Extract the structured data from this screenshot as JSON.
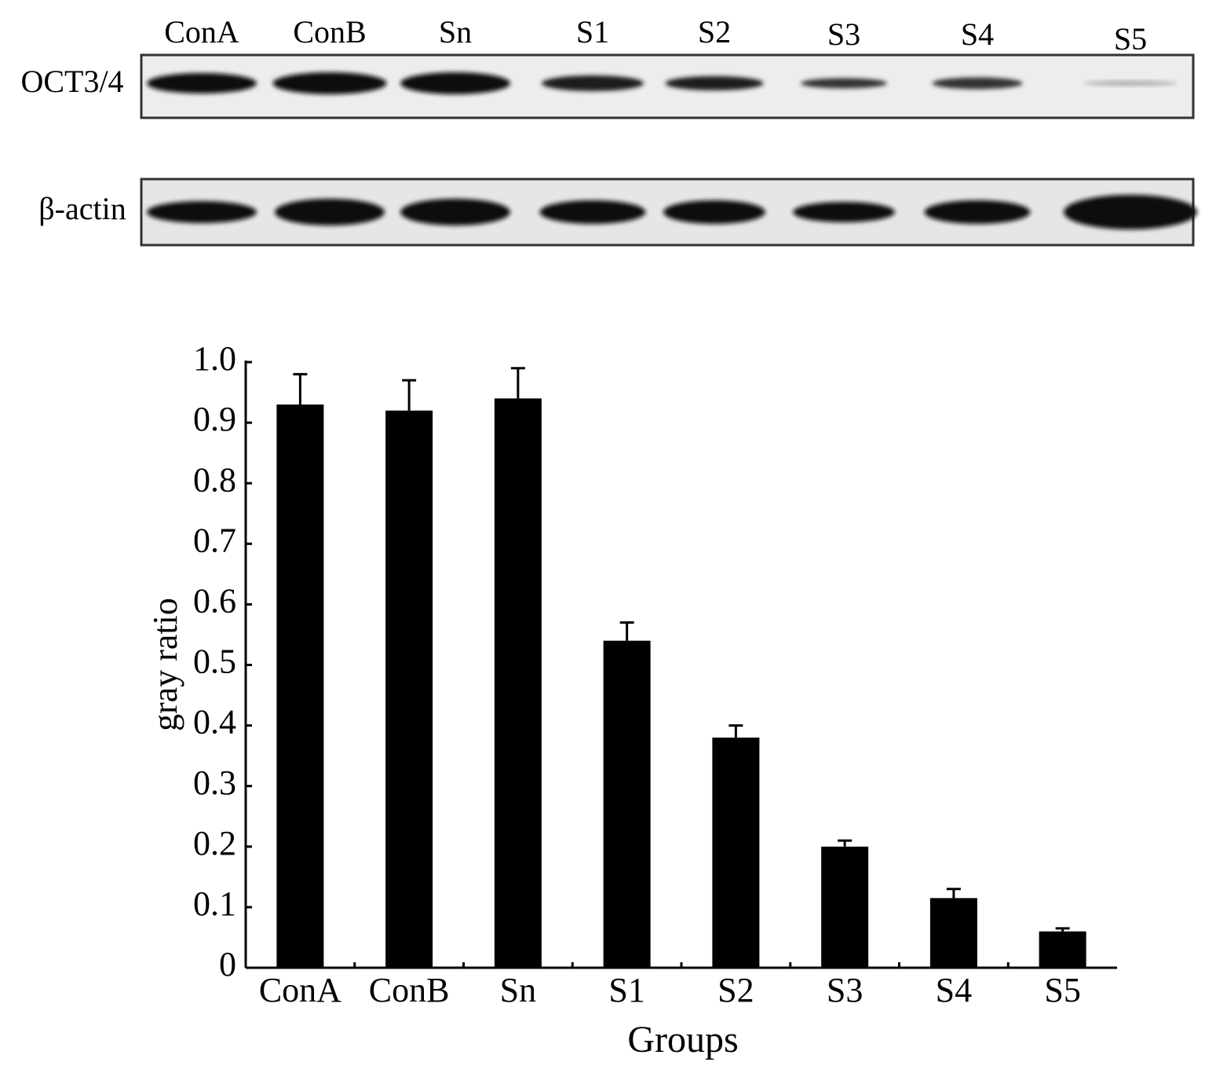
{
  "blot": {
    "lanes": [
      "ConA",
      "ConB",
      "Sn",
      "S1",
      "S2",
      "S3",
      "S4",
      "S5"
    ],
    "rows": [
      "OCT3/4",
      "β-actin"
    ]
  },
  "chart_data": {
    "type": "bar",
    "y_label": "gray ratio",
    "x_label": "Groups",
    "categories": [
      "ConA",
      "ConB",
      "Sn",
      "S1",
      "S2",
      "S3",
      "S4",
      "S5"
    ],
    "values": [
      0.93,
      0.92,
      0.94,
      0.54,
      0.38,
      0.2,
      0.115,
      0.06
    ],
    "errors": [
      0.05,
      0.05,
      0.05,
      0.03,
      0.02,
      0.01,
      0.015,
      0.005
    ],
    "color": "#000000",
    "ylim": [
      0,
      1
    ],
    "yticks": [
      0,
      0.1,
      0.2,
      0.3,
      0.4,
      0.5,
      0.6,
      0.7,
      0.8,
      0.9,
      {
        "value": 1,
        "label": "1.0"
      }
    ]
  }
}
